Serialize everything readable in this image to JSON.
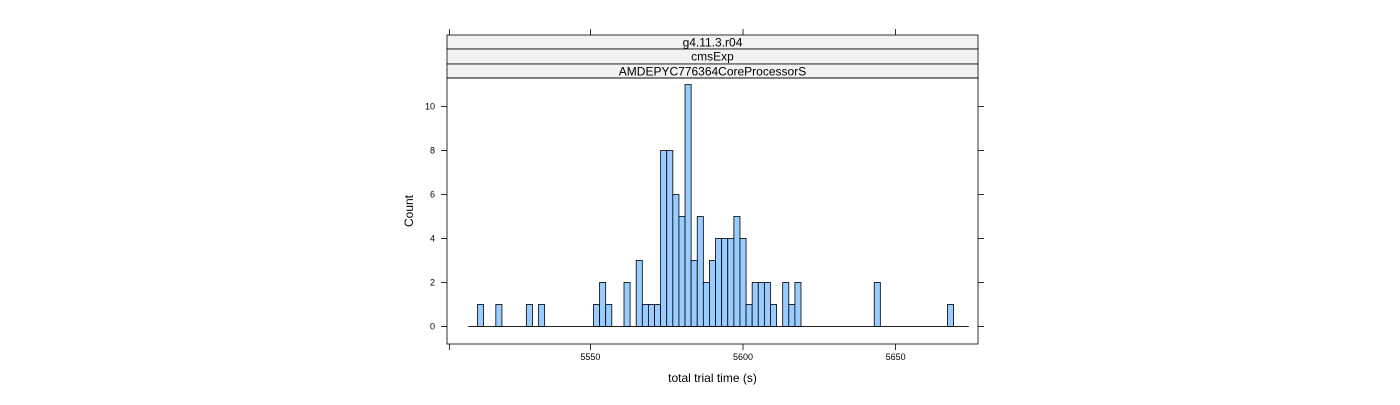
{
  "strips": [
    "g4.11.3.r04",
    "cmsExp",
    "AMDEPYC776364CoreProcessorS"
  ],
  "chart_data": {
    "type": "bar",
    "title": "",
    "xlabel": "total trial time (s)",
    "ylabel": "Count",
    "xlim": [
      5503,
      5677
    ],
    "ylim": [
      -0.8,
      11.3
    ],
    "xticks": [
      5550,
      5600,
      5650
    ],
    "yticks": [
      0,
      2,
      4,
      6,
      8,
      10
    ],
    "bin_width": 2,
    "bar_color": "#99ccff",
    "grid": false,
    "legend": "none",
    "histogram_range": [
      5510,
      5674
    ],
    "bins": [
      {
        "x": 5514,
        "count": 1
      },
      {
        "x": 5520,
        "count": 1
      },
      {
        "x": 5530,
        "count": 1
      },
      {
        "x": 5534,
        "count": 1
      },
      {
        "x": 5552,
        "count": 1
      },
      {
        "x": 5554,
        "count": 2
      },
      {
        "x": 5556,
        "count": 1
      },
      {
        "x": 5562,
        "count": 2
      },
      {
        "x": 5566,
        "count": 3
      },
      {
        "x": 5568,
        "count": 1
      },
      {
        "x": 5570,
        "count": 1
      },
      {
        "x": 5572,
        "count": 1
      },
      {
        "x": 5574,
        "count": 8
      },
      {
        "x": 5576,
        "count": 8
      },
      {
        "x": 5578,
        "count": 6
      },
      {
        "x": 5580,
        "count": 5
      },
      {
        "x": 5582,
        "count": 11
      },
      {
        "x": 5584,
        "count": 3
      },
      {
        "x": 5586,
        "count": 5
      },
      {
        "x": 5588,
        "count": 2
      },
      {
        "x": 5590,
        "count": 3
      },
      {
        "x": 5592,
        "count": 4
      },
      {
        "x": 5594,
        "count": 4
      },
      {
        "x": 5596,
        "count": 4
      },
      {
        "x": 5598,
        "count": 5
      },
      {
        "x": 5600,
        "count": 4
      },
      {
        "x": 5602,
        "count": 1
      },
      {
        "x": 5604,
        "count": 2
      },
      {
        "x": 5606,
        "count": 2
      },
      {
        "x": 5608,
        "count": 2
      },
      {
        "x": 5610,
        "count": 1
      },
      {
        "x": 5614,
        "count": 2
      },
      {
        "x": 5616,
        "count": 1
      },
      {
        "x": 5618,
        "count": 2
      },
      {
        "x": 5644,
        "count": 2
      },
      {
        "x": 5668,
        "count": 1
      }
    ]
  }
}
